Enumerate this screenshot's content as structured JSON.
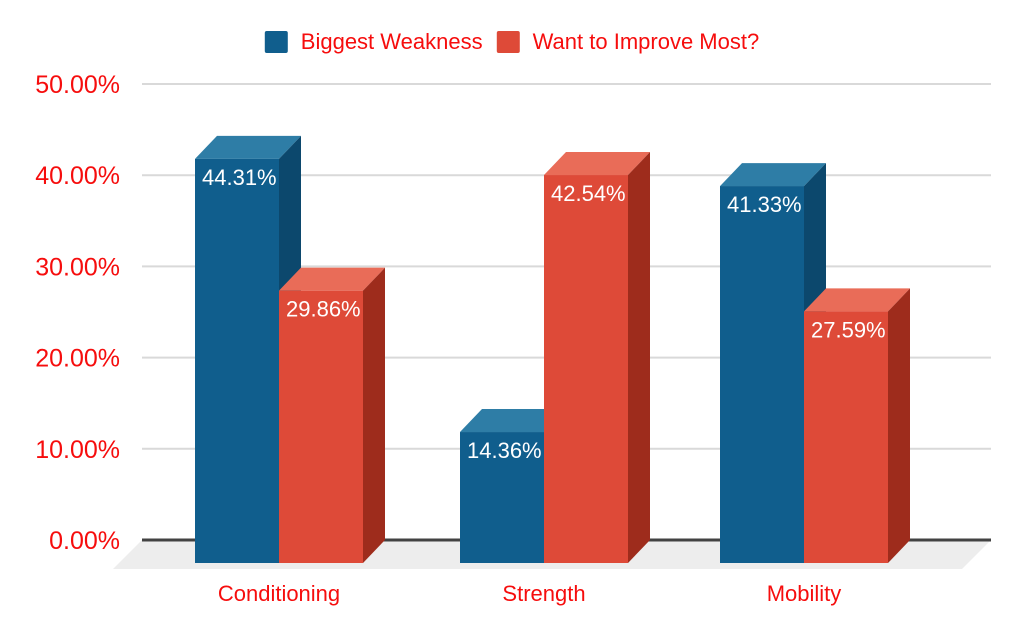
{
  "chart_data": {
    "type": "bar",
    "subtype": "3d-column-grouped",
    "title": "",
    "xlabel": "",
    "ylabel": "",
    "categories": [
      "Conditioning",
      "Strength",
      "Mobility"
    ],
    "series": [
      {
        "name": "Biggest Weakness",
        "values": [
          44.31,
          14.36,
          41.33
        ],
        "labels": [
          "44.31%",
          "14.36%",
          "41.33%"
        ],
        "color": "#105e8d",
        "color_top": "#2e7da6",
        "color_side": "#0c486d"
      },
      {
        "name": "Want to Improve Most?",
        "values": [
          29.86,
          42.54,
          27.59
        ],
        "labels": [
          "29.86%",
          "42.54%",
          "27.59%"
        ],
        "color": "#de4a38",
        "color_top": "#e96c58",
        "color_side": "#9e2c1c"
      }
    ],
    "y_axis": {
      "ticks": [
        "0.00%",
        "10.00%",
        "20.00%",
        "30.00%",
        "40.00%",
        "50.00%"
      ],
      "tick_values": [
        0,
        10,
        20,
        30,
        40,
        50
      ],
      "min": 0,
      "max": 50
    },
    "legend_position": "top",
    "grid": true
  },
  "colors": {
    "background": "#ffffff",
    "axis_text": "#f60d0d",
    "category_text": "#f60d0d",
    "legend_text": "#f60d0d",
    "grid_line": "#d9d9d9",
    "baseline": "#424242",
    "floor": "#ededed",
    "bar_label_text": "#ffffff"
  }
}
